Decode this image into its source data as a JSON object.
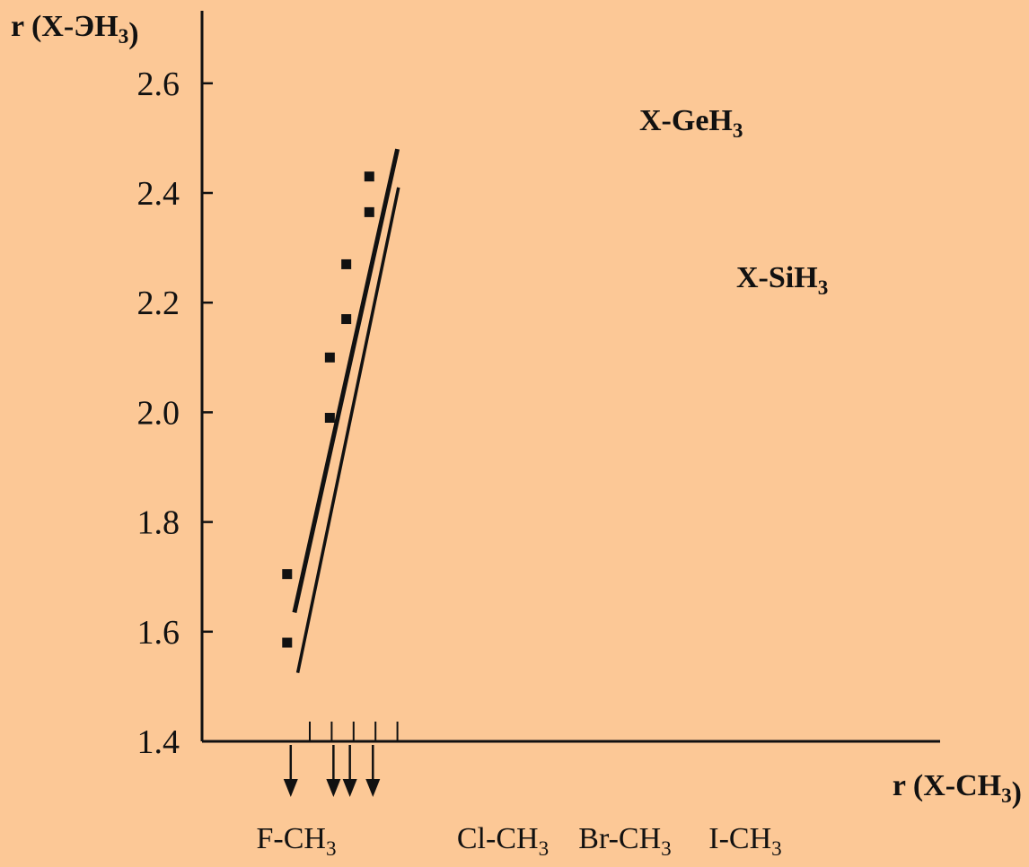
{
  "chart_data": {
    "type": "scatter",
    "ylabel": "r (X-ЭH3)",
    "xlabel": "r (X-CH3)",
    "ylim": [
      1.4,
      2.7
    ],
    "yticks": [
      "1.4",
      "1.6",
      "1.8",
      "2.0",
      "2.2",
      "2.4",
      "2.6"
    ],
    "ytick_values": [
      1.4,
      1.6,
      1.8,
      2.0,
      2.2,
      2.4,
      2.6
    ],
    "categories": [
      "F-CH3",
      "Cl-CH3",
      "Br-CH3",
      "I-CH3"
    ],
    "category_x": [
      1.39,
      1.78,
      1.93,
      2.14
    ],
    "xlim": [
      1.2,
      2.5
    ],
    "xtick_values": [
      1.4,
      1.6,
      1.8,
      2.0,
      2.2
    ],
    "grid": false,
    "series": [
      {
        "name": "X-GeH3",
        "x": [
          1.39,
          1.78,
          1.93,
          2.14
        ],
        "y": [
          1.705,
          2.1,
          2.27,
          2.43
        ],
        "fit": [
          [
            1.26,
            1.635
          ],
          [
            2.2,
            2.48
          ]
        ]
      },
      {
        "name": "X-SiH3",
        "x": [
          1.39,
          1.78,
          1.93,
          2.14
        ],
        "y": [
          1.58,
          1.99,
          2.17,
          2.365
        ],
        "fit": [
          [
            1.29,
            1.525
          ],
          [
            2.21,
            2.41
          ]
        ]
      }
    ]
  },
  "colors": {
    "background": "#FCC896",
    "ink": "#111111"
  }
}
